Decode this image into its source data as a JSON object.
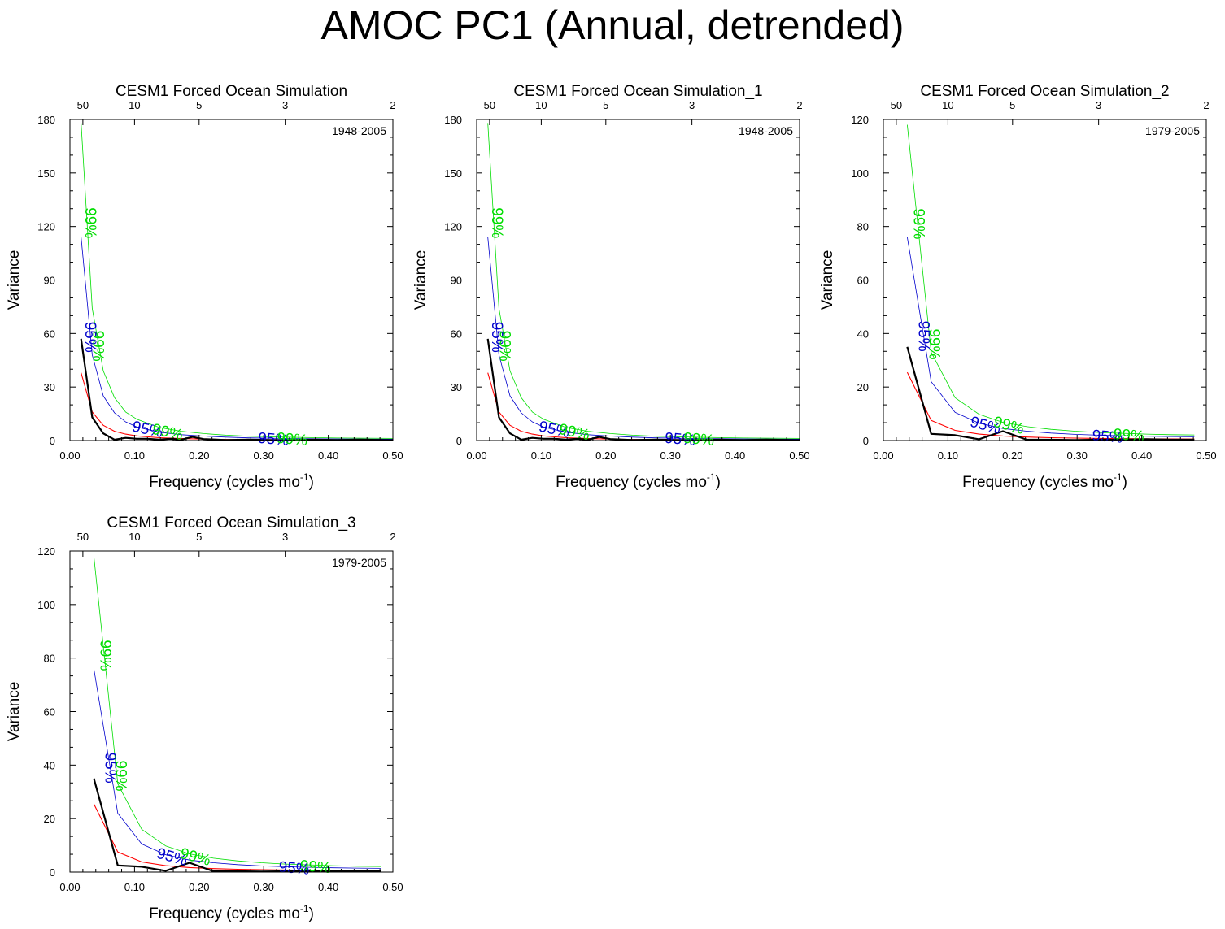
{
  "figure": {
    "title": "AMOC PC1 (Annual, detrended)"
  },
  "colors": {
    "spectrum": "#000000",
    "red_noise": "#ff0000",
    "ci95": "#0000cc",
    "ci99": "#00dd00"
  },
  "chart_data": [
    {
      "type": "line",
      "title": "CESM1 Forced Ocean Simulation",
      "period_label": "1948-2005",
      "xlabel": "Frequency (cycles mo",
      "xlabel_sup": "-1",
      "xlabel_tail": ")",
      "ylabel": "Variance",
      "xlim": [
        0,
        0.5
      ],
      "ylim": [
        0,
        180
      ],
      "x_ticks": [
        "0.00",
        "0.10",
        "0.20",
        "0.30",
        "0.40",
        "0.50"
      ],
      "y_ticks": [
        "0",
        "30",
        "60",
        "90",
        "120",
        "150",
        "180"
      ],
      "y_tick_values": [
        0,
        30,
        60,
        90,
        120,
        150,
        180
      ],
      "top_axis_ticks": [
        {
          "label": "50",
          "value": 0.02
        },
        {
          "label": "10",
          "value": 0.1
        },
        {
          "label": "5",
          "value": 0.2
        },
        {
          "label": "3",
          "value": 0.3333
        },
        {
          "label": "2",
          "value": 0.5
        }
      ],
      "series": [
        {
          "name": "spectrum",
          "x": [
            0.0172,
            0.0345,
            0.0517,
            0.069,
            0.0862,
            0.1034,
            0.1207,
            0.1379,
            0.1552,
            0.1724,
            0.1897,
            0.2069,
            0.2414,
            0.2759,
            0.3103,
            0.3448,
            0.3793,
            0.4138,
            0.4483,
            0.5
          ],
          "y": [
            57,
            13,
            4,
            0.5,
            1.5,
            1,
            1,
            0.5,
            1,
            0.5,
            2,
            0.8,
            0.3,
            0.5,
            0.3,
            0.3,
            0.5,
            0.3,
            0.5,
            0.2
          ]
        },
        {
          "name": "red noise",
          "x": [
            0.0172,
            0.0345,
            0.0517,
            0.069,
            0.0862,
            0.1034,
            0.1379,
            0.1724,
            0.2069,
            0.2414,
            0.2759,
            0.3448,
            0.4138,
            0.5
          ],
          "y": [
            38,
            16,
            8.5,
            5.2,
            3.6,
            2.6,
            1.6,
            1.1,
            0.8,
            0.6,
            0.5,
            0.4,
            0.3,
            0.25
          ]
        },
        {
          "name": "95%",
          "x": [
            0.0172,
            0.0345,
            0.0517,
            0.069,
            0.0862,
            0.1034,
            0.1379,
            0.1724,
            0.2069,
            0.2414,
            0.2759,
            0.3448,
            0.4138,
            0.5
          ],
          "y": [
            114,
            48,
            25,
            15.5,
            10.5,
            7.6,
            4.7,
            3.3,
            2.5,
            1.9,
            1.5,
            1.1,
            0.9,
            0.75
          ]
        },
        {
          "name": "99%",
          "x": [
            0.0172,
            0.0345,
            0.0517,
            0.069,
            0.0862,
            0.1034,
            0.1379,
            0.1724,
            0.2069,
            0.2414,
            0.2759,
            0.3448,
            0.4138,
            0.5
          ],
          "y": [
            178,
            74,
            39,
            24,
            16,
            12,
            7.4,
            5.2,
            3.9,
            3,
            2.4,
            1.8,
            1.4,
            1.2
          ]
        }
      ],
      "labels": [
        {
          "text": "99%",
          "series": "99%",
          "x": 0.031,
          "y": 122,
          "angle": 90
        },
        {
          "text": "95%",
          "series": "95%",
          "x": 0.031,
          "y": 58,
          "angle": 90
        },
        {
          "text": "99%",
          "series": "99%",
          "x": 0.043,
          "y": 53,
          "angle": 90
        },
        {
          "text": "95%",
          "series": "95%",
          "x": 0.12,
          "y": 6,
          "angle": 12
        },
        {
          "text": "99%",
          "series": "99%",
          "x": 0.151,
          "y": 4.5,
          "angle": 12
        },
        {
          "text": "95%",
          "series": "95%",
          "x": 0.315,
          "y": 0.5,
          "angle": 5
        },
        {
          "text": "99%",
          "series": "99%",
          "x": 0.344,
          "y": 0.5,
          "angle": 5
        }
      ]
    },
    {
      "type": "line",
      "title": "CESM1 Forced Ocean Simulation_1",
      "period_label": "1948-2005",
      "xlabel": "Frequency (cycles mo",
      "xlabel_sup": "-1",
      "xlabel_tail": ")",
      "ylabel": "Variance",
      "xlim": [
        0,
        0.5
      ],
      "ylim": [
        0,
        180
      ],
      "x_ticks": [
        "0.00",
        "0.10",
        "0.20",
        "0.30",
        "0.40",
        "0.50"
      ],
      "y_ticks": [
        "0",
        "30",
        "60",
        "90",
        "120",
        "150",
        "180"
      ],
      "y_tick_values": [
        0,
        30,
        60,
        90,
        120,
        150,
        180
      ],
      "top_axis_ticks": [
        {
          "label": "50",
          "value": 0.02
        },
        {
          "label": "10",
          "value": 0.1
        },
        {
          "label": "5",
          "value": 0.2
        },
        {
          "label": "3",
          "value": 0.3333
        },
        {
          "label": "2",
          "value": 0.5
        }
      ],
      "series": [
        {
          "name": "spectrum",
          "x": [
            0.0172,
            0.0345,
            0.0517,
            0.069,
            0.0862,
            0.1034,
            0.1207,
            0.1379,
            0.1552,
            0.1724,
            0.1897,
            0.2069,
            0.2414,
            0.2759,
            0.3103,
            0.3448,
            0.3793,
            0.4138,
            0.4483,
            0.5
          ],
          "y": [
            57,
            13,
            4,
            0.5,
            1.5,
            1,
            1,
            0.5,
            1,
            0.5,
            2,
            0.8,
            0.3,
            0.5,
            0.3,
            0.3,
            0.5,
            0.3,
            0.5,
            0.2
          ]
        },
        {
          "name": "red noise",
          "x": [
            0.0172,
            0.0345,
            0.0517,
            0.069,
            0.0862,
            0.1034,
            0.1379,
            0.1724,
            0.2069,
            0.2414,
            0.2759,
            0.3448,
            0.4138,
            0.5
          ],
          "y": [
            38,
            16,
            8.5,
            5.2,
            3.6,
            2.6,
            1.6,
            1.1,
            0.8,
            0.6,
            0.5,
            0.4,
            0.3,
            0.25
          ]
        },
        {
          "name": "95%",
          "x": [
            0.0172,
            0.0345,
            0.0517,
            0.069,
            0.0862,
            0.1034,
            0.1379,
            0.1724,
            0.2069,
            0.2414,
            0.2759,
            0.3448,
            0.4138,
            0.5
          ],
          "y": [
            114,
            48,
            25,
            15.5,
            10.5,
            7.6,
            4.7,
            3.3,
            2.5,
            1.9,
            1.5,
            1.1,
            0.9,
            0.75
          ]
        },
        {
          "name": "99%",
          "x": [
            0.0172,
            0.0345,
            0.0517,
            0.069,
            0.0862,
            0.1034,
            0.1379,
            0.1724,
            0.2069,
            0.2414,
            0.2759,
            0.3448,
            0.4138,
            0.5
          ],
          "y": [
            178,
            74,
            39,
            24,
            16,
            12,
            7.4,
            5.2,
            3.9,
            3,
            2.4,
            1.8,
            1.4,
            1.2
          ]
        }
      ],
      "labels": [
        {
          "text": "99%",
          "series": "99%",
          "x": 0.031,
          "y": 122,
          "angle": 90
        },
        {
          "text": "95%",
          "series": "95%",
          "x": 0.031,
          "y": 58,
          "angle": 90
        },
        {
          "text": "99%",
          "series": "99%",
          "x": 0.043,
          "y": 53,
          "angle": 90
        },
        {
          "text": "95%",
          "series": "95%",
          "x": 0.12,
          "y": 6,
          "angle": 12
        },
        {
          "text": "99%",
          "series": "99%",
          "x": 0.151,
          "y": 4.5,
          "angle": 12
        },
        {
          "text": "95%",
          "series": "95%",
          "x": 0.315,
          "y": 0.5,
          "angle": 5
        },
        {
          "text": "99%",
          "series": "99%",
          "x": 0.344,
          "y": 0.5,
          "angle": 5
        }
      ]
    },
    {
      "type": "line",
      "title": "CESM1 Forced Ocean Simulation_2",
      "period_label": "1979-2005",
      "xlabel": "Frequency (cycles mo",
      "xlabel_sup": "-1",
      "xlabel_tail": ")",
      "ylabel": "Variance",
      "xlim": [
        0,
        0.5
      ],
      "ylim": [
        0,
        120
      ],
      "x_ticks": [
        "0.00",
        "0.10",
        "0.20",
        "0.30",
        "0.40",
        "0.50"
      ],
      "y_ticks": [
        "0",
        "20",
        "40",
        "60",
        "80",
        "100",
        "120"
      ],
      "y_tick_values": [
        0,
        20,
        40,
        60,
        80,
        100,
        120
      ],
      "top_axis_ticks": [
        {
          "label": "50",
          "value": 0.02
        },
        {
          "label": "10",
          "value": 0.1
        },
        {
          "label": "5",
          "value": 0.2
        },
        {
          "label": "3",
          "value": 0.3333
        },
        {
          "label": "2",
          "value": 0.5
        }
      ],
      "series": [
        {
          "name": "spectrum",
          "x": [
            0.037,
            0.0741,
            0.1111,
            0.1481,
            0.1852,
            0.2222,
            0.2593,
            0.2963,
            0.3333,
            0.3704,
            0.4074,
            0.4444,
            0.4815
          ],
          "y": [
            35,
            2.5,
            2,
            0.5,
            3.5,
            0.3,
            0.3,
            0.2,
            0.3,
            0.3,
            0.5,
            0.3,
            0.3
          ]
        },
        {
          "name": "red noise",
          "x": [
            0.037,
            0.0741,
            0.1111,
            0.1481,
            0.1852,
            0.2222,
            0.2593,
            0.2963,
            0.3333,
            0.3704,
            0.4074,
            0.4444,
            0.4815
          ],
          "y": [
            25.5,
            7.5,
            3.8,
            2.4,
            1.7,
            1.3,
            1.05,
            0.9,
            0.8,
            0.7,
            0.65,
            0.6,
            0.55
          ]
        },
        {
          "name": "95%",
          "x": [
            0.037,
            0.0741,
            0.1111,
            0.1481,
            0.1852,
            0.2222,
            0.2593,
            0.2963,
            0.3333,
            0.3704,
            0.4074,
            0.4444,
            0.4815
          ],
          "y": [
            76,
            22,
            10.5,
            6.5,
            4.5,
            3.5,
            2.8,
            2.3,
            2,
            1.8,
            1.6,
            1.5,
            1.4
          ]
        },
        {
          "name": "99%",
          "x": [
            0.037,
            0.0741,
            0.1111,
            0.1481,
            0.1852,
            0.2222,
            0.2593,
            0.2963,
            0.3333,
            0.3704,
            0.4074,
            0.4444,
            0.4815
          ],
          "y": [
            118,
            33,
            16,
            9.8,
            6.8,
            5.2,
            4.2,
            3.5,
            3,
            2.7,
            2.4,
            2.2,
            2.1
          ]
        }
      ],
      "labels": [
        {
          "text": "99%",
          "series": "99%",
          "x": 0.054,
          "y": 81,
          "angle": 90
        },
        {
          "text": "95%",
          "series": "95%",
          "x": 0.062,
          "y": 39,
          "angle": 90
        },
        {
          "text": "99%",
          "series": "99%",
          "x": 0.078,
          "y": 36,
          "angle": 90
        },
        {
          "text": "95%",
          "series": "95%",
          "x": 0.158,
          "y": 5.5,
          "angle": 15
        },
        {
          "text": "99%",
          "series": "99%",
          "x": 0.194,
          "y": 5.5,
          "angle": 15
        },
        {
          "text": "95%",
          "series": "95%",
          "x": 0.347,
          "y": 1.3,
          "angle": 5
        },
        {
          "text": "99%",
          "series": "99%",
          "x": 0.38,
          "y": 1.8,
          "angle": 5
        }
      ]
    },
    {
      "type": "line",
      "title": "CESM1 Forced Ocean Simulation_3",
      "period_label": "1979-2005",
      "xlabel": "Frequency (cycles mo",
      "xlabel_sup": "-1",
      "xlabel_tail": ")",
      "ylabel": "Variance",
      "xlim": [
        0,
        0.5
      ],
      "ylim": [
        0,
        120
      ],
      "x_ticks": [
        "0.00",
        "0.10",
        "0.20",
        "0.30",
        "0.40",
        "0.50"
      ],
      "y_ticks": [
        "0",
        "20",
        "40",
        "60",
        "80",
        "100",
        "120"
      ],
      "y_tick_values": [
        0,
        20,
        40,
        60,
        80,
        100,
        120
      ],
      "top_axis_ticks": [
        {
          "label": "50",
          "value": 0.02
        },
        {
          "label": "10",
          "value": 0.1
        },
        {
          "label": "5",
          "value": 0.2
        },
        {
          "label": "3",
          "value": 0.3333
        },
        {
          "label": "2",
          "value": 0.5
        }
      ],
      "series": [
        {
          "name": "spectrum",
          "x": [
            0.037,
            0.0741,
            0.1111,
            0.1481,
            0.1852,
            0.2222,
            0.2593,
            0.2963,
            0.3333,
            0.3704,
            0.4074,
            0.4444,
            0.4815
          ],
          "y": [
            35,
            2.5,
            2,
            0.5,
            3.5,
            0.3,
            0.3,
            0.2,
            0.3,
            0.3,
            0.5,
            0.3,
            0.3
          ]
        },
        {
          "name": "red noise",
          "x": [
            0.037,
            0.0741,
            0.1111,
            0.1481,
            0.1852,
            0.2222,
            0.2593,
            0.2963,
            0.3333,
            0.3704,
            0.4074,
            0.4444,
            0.4815
          ],
          "y": [
            25.5,
            7.5,
            3.8,
            2.4,
            1.7,
            1.3,
            1.05,
            0.9,
            0.8,
            0.7,
            0.65,
            0.6,
            0.55
          ]
        },
        {
          "name": "95%",
          "x": [
            0.037,
            0.0741,
            0.1111,
            0.1481,
            0.1852,
            0.2222,
            0.2593,
            0.2963,
            0.3333,
            0.3704,
            0.4074,
            0.4444,
            0.4815
          ],
          "y": [
            76,
            22,
            10.5,
            6.5,
            4.5,
            3.5,
            2.8,
            2.3,
            2,
            1.8,
            1.6,
            1.5,
            1.4
          ]
        },
        {
          "name": "99%",
          "x": [
            0.037,
            0.0741,
            0.1111,
            0.1481,
            0.1852,
            0.2222,
            0.2593,
            0.2963,
            0.3333,
            0.3704,
            0.4074,
            0.4444,
            0.4815
          ],
          "y": [
            118,
            33,
            16,
            9.8,
            6.8,
            5.2,
            4.2,
            3.5,
            3,
            2.7,
            2.4,
            2.2,
            2.1
          ]
        }
      ],
      "labels": [
        {
          "text": "99%",
          "series": "99%",
          "x": 0.054,
          "y": 81,
          "angle": 90
        },
        {
          "text": "95%",
          "series": "95%",
          "x": 0.062,
          "y": 39,
          "angle": 90
        },
        {
          "text": "99%",
          "series": "99%",
          "x": 0.078,
          "y": 36,
          "angle": 90
        },
        {
          "text": "95%",
          "series": "95%",
          "x": 0.158,
          "y": 5.5,
          "angle": 15
        },
        {
          "text": "99%",
          "series": "99%",
          "x": 0.194,
          "y": 5.5,
          "angle": 15
        },
        {
          "text": "95%",
          "series": "95%",
          "x": 0.347,
          "y": 1.3,
          "angle": 5
        },
        {
          "text": "99%",
          "series": "99%",
          "x": 0.38,
          "y": 1.8,
          "angle": 5
        }
      ]
    }
  ]
}
